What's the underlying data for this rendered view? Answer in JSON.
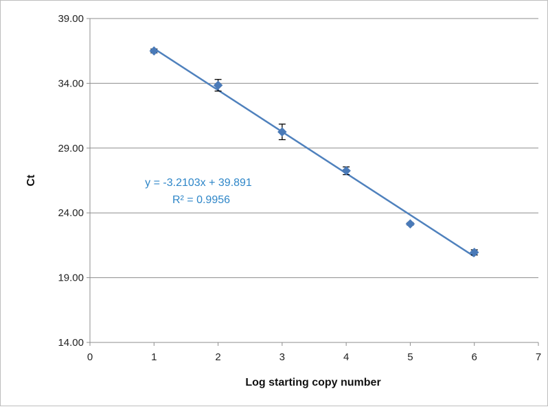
{
  "chart_data": {
    "type": "scatter",
    "title": "",
    "xlabel": "Log starting copy number",
    "ylabel": "Ct",
    "xlim": [
      0,
      7
    ],
    "ylim": [
      14,
      39
    ],
    "x_ticks": [
      0,
      1,
      2,
      3,
      4,
      5,
      6,
      7
    ],
    "x_tick_labels": [
      "0",
      "1",
      "2",
      "3",
      "4",
      "5",
      "6",
      "7"
    ],
    "y_ticks": [
      14,
      19,
      24,
      29,
      34,
      39
    ],
    "y_tick_labels": [
      "14.00",
      "19.00",
      "24.00",
      "29.00",
      "34.00",
      "39.00"
    ],
    "grid": "horizontal",
    "legend": "none",
    "series": [
      {
        "points": [
          {
            "x": 1,
            "y": 36.5,
            "err": 0.15
          },
          {
            "x": 2,
            "y": 33.85,
            "err": 0.45
          },
          {
            "x": 3,
            "y": 30.25,
            "err": 0.6
          },
          {
            "x": 4,
            "y": 27.25,
            "err": 0.3
          },
          {
            "x": 5,
            "y": 23.15,
            "err": 0.1
          },
          {
            "x": 6,
            "y": 20.95,
            "err": 0.2
          }
        ]
      }
    ],
    "trendline": {
      "type": "linear",
      "slope": -3.2103,
      "intercept": 39.891,
      "x_range": [
        1,
        6
      ],
      "equation_label": "y = -3.2103x + 39.891",
      "r2_label": "R² = 0.9956"
    },
    "colors": {
      "marker": "#4a7ab8",
      "trendline": "#4f81bd",
      "error_bar": "#000000",
      "gridline": "#8c8c8c",
      "axis": "#8c8c8c",
      "annotation": "#2e86c8"
    }
  }
}
